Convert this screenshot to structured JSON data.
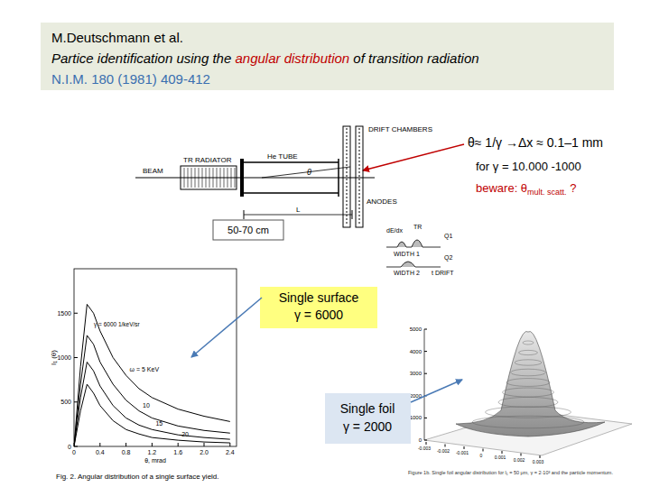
{
  "header": {
    "authors": "M.Deutschmann et al.",
    "title_parts": [
      "Partice identification using the ",
      "angular distribution",
      " of transition radiation"
    ],
    "reference": "N.I.M. 180 (1981) 409-412"
  },
  "annotation": {
    "line1": "θ≈ 1/γ →Δx ≈ 0.1–1 mm",
    "line2": "for γ = 10.000 -1000",
    "line3": [
      "beware: θ",
      "mult. scatt.",
      " ?"
    ]
  },
  "setup": {
    "drift_chambers": "DRIFT CHAMBERS",
    "he_tube": "He TUBE",
    "radiator": "TR RADIATOR",
    "beam": "BEAM",
    "anodes": "ANODES",
    "theta": "θ",
    "length": "L",
    "distance": "50-70 cm",
    "dedx": "dE/dx",
    "tr": "TR",
    "q1": "Q1",
    "width1": "WIDTH 1",
    "q2": "Q2",
    "width2": "WIDTH 2",
    "tdrift": "t DRIFT"
  },
  "callouts": [
    {
      "lines": [
        "Single surface",
        "γ = 6000"
      ]
    },
    {
      "lines": [
        "Single foil",
        "γ = 2000"
      ]
    }
  ],
  "chart_data": {
    "type": "line",
    "x_label": "θ, mrad",
    "y_label": "I₁ (θ)",
    "annotations": [
      "γ = 6000 1/keV/sr"
    ],
    "caption": "Fig. 2. Angular distribution of a single surface yield.",
    "x": [
      0,
      0.1,
      0.2,
      0.3,
      0.4,
      0.6,
      0.8,
      1.0,
      1.2,
      1.6,
      2.0,
      2.4
    ],
    "series": [
      {
        "name": "ω = 5 KeV",
        "color": "#000000",
        "values": [
          0,
          900,
          1600,
          1500,
          1300,
          1000,
          800,
          650,
          550,
          420,
          340,
          280
        ]
      },
      {
        "name": "10",
        "color": "#000000",
        "values": [
          0,
          700,
          1250,
          1150,
          950,
          700,
          520,
          400,
          320,
          230,
          180,
          150
        ]
      },
      {
        "name": "15",
        "color": "#000000",
        "values": [
          0,
          550,
          950,
          850,
          680,
          460,
          320,
          240,
          190,
          130,
          100,
          80
        ]
      },
      {
        "name": "20",
        "color": "#000000",
        "values": [
          0,
          400,
          700,
          600,
          460,
          290,
          190,
          140,
          100,
          70,
          50,
          40
        ]
      }
    ],
    "xlim": [
      0,
      2.5
    ],
    "ylim": [
      0,
      2000
    ],
    "xticks": [
      0,
      0.4,
      0.8,
      1.2,
      1.6,
      {
        "value": 2,
        "label": "2.0"
      },
      2.4
    ],
    "yticks": [
      0,
      500,
      1000,
      1500
    ],
    "grid": false
  },
  "surface": {
    "zlim": [
      0,
      5000
    ],
    "zticks": [
      0,
      1000,
      2000,
      3000,
      4000,
      5000
    ],
    "xlim": [
      -0.003,
      0.003
    ],
    "xticks": [
      -0.003,
      -0.002,
      -0.001,
      0,
      0.001,
      0.002,
      0.003
    ],
    "caption": "Figure 1b. Single foil angular distribution for l₁ = 50 μm, γ = 2·10³ and the particle momentum."
  }
}
